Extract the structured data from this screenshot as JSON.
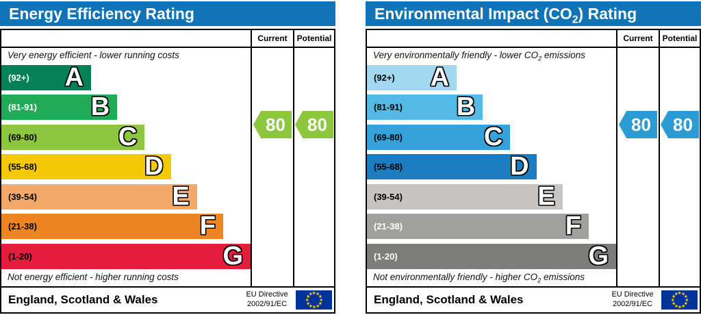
{
  "chart_data": [
    {
      "type": "bar",
      "title": "Energy Efficiency Rating",
      "bands": [
        {
          "band": "A",
          "range": "92+"
        },
        {
          "band": "B",
          "range": "81-91"
        },
        {
          "band": "C",
          "range": "69-80"
        },
        {
          "band": "D",
          "range": "55-68"
        },
        {
          "band": "E",
          "range": "39-54"
        },
        {
          "band": "F",
          "range": "21-38"
        },
        {
          "band": "G",
          "range": "1-20"
        }
      ],
      "current": 80,
      "potential": 80,
      "current_band": "C",
      "potential_band": "C",
      "top_caption": "Very energy efficient - lower running costs",
      "bottom_caption": "Not energy efficient - higher running costs",
      "region": "England, Scotland & Wales",
      "directive": "EU Directive 2002/91/EC"
    },
    {
      "type": "bar",
      "title": "Environmental Impact (CO2) Rating",
      "bands": [
        {
          "band": "A",
          "range": "92+"
        },
        {
          "band": "B",
          "range": "81-91"
        },
        {
          "band": "C",
          "range": "69-80"
        },
        {
          "band": "D",
          "range": "55-68"
        },
        {
          "band": "E",
          "range": "39-54"
        },
        {
          "band": "F",
          "range": "21-38"
        },
        {
          "band": "G",
          "range": "1-20"
        }
      ],
      "current": 80,
      "potential": 80,
      "current_band": "C",
      "potential_band": "C",
      "top_caption": "Very environmentally friendly - lower CO2 emissions",
      "bottom_caption": "Not environmentally friendly - higher CO2 emissions",
      "region": "England, Scotland & Wales",
      "directive": "EU Directive 2002/91/EC"
    }
  ],
  "panels": [
    {
      "id": "energy",
      "header_color": "#1173b8",
      "title": {
        "pre": "Energy Efficiency Rating",
        "sub": "",
        "post": ""
      },
      "columns": {
        "current": "Current",
        "potential": "Potential"
      },
      "caption_top": {
        "pre": "Very energy efficient - lower running costs",
        "sub": "",
        "post": ""
      },
      "caption_bottom": {
        "pre": "Not energy efficient - higher running costs",
        "sub": "",
        "post": ""
      },
      "bands": [
        {
          "letter": "A",
          "range": "(92+)",
          "color": "#058157",
          "label_color": "#ffffff",
          "width_pct": 36
        },
        {
          "letter": "B",
          "range": "(81-91)",
          "color": "#22ab57",
          "label_color": "#ffffff",
          "width_pct": 46.5
        },
        {
          "letter": "C",
          "range": "(69-80)",
          "color": "#8dc63f",
          "label_color": "#000000",
          "width_pct": 57.5
        },
        {
          "letter": "D",
          "range": "(55-68)",
          "color": "#f4c908",
          "label_color": "#000000",
          "width_pct": 68
        },
        {
          "letter": "E",
          "range": "(39-54)",
          "color": "#f3a96a",
          "label_color": "#000000",
          "width_pct": 78.5
        },
        {
          "letter": "F",
          "range": "(21-38)",
          "color": "#ee8523",
          "label_color": "#000000",
          "width_pct": 89
        },
        {
          "letter": "G",
          "range": "(1-20)",
          "color": "#e51d3c",
          "label_color": "#000000",
          "width_pct": 100
        }
      ],
      "current": {
        "value": "80",
        "color": "#8dc63f"
      },
      "potential": {
        "value": "80",
        "color": "#8dc63f"
      },
      "footer": {
        "region": "England, Scotland & Wales",
        "directive_line1": "EU Directive",
        "directive_line2": "2002/91/EC"
      }
    },
    {
      "id": "co2",
      "header_color": "#1173b8",
      "title": {
        "pre": "Environmental Impact (CO",
        "sub": "2",
        "post": ") Rating"
      },
      "columns": {
        "current": "Current",
        "potential": "Potential"
      },
      "caption_top": {
        "pre": "Very environmentally friendly - lower CO",
        "sub": "2",
        "post": " emissions"
      },
      "caption_bottom": {
        "pre": "Not environmentally friendly - higher CO",
        "sub": "2",
        "post": " emissions"
      },
      "bands": [
        {
          "letter": "A",
          "range": "(92+)",
          "color": "#a2d9f1",
          "label_color": "#000000",
          "width_pct": 36
        },
        {
          "letter": "B",
          "range": "(81-91)",
          "color": "#55b9e6",
          "label_color": "#000000",
          "width_pct": 46.5
        },
        {
          "letter": "C",
          "range": "(69-80)",
          "color": "#35a3da",
          "label_color": "#000000",
          "width_pct": 57.5
        },
        {
          "letter": "D",
          "range": "(55-68)",
          "color": "#1b7cc0",
          "label_color": "#000000",
          "width_pct": 68
        },
        {
          "letter": "E",
          "range": "(39-54)",
          "color": "#c6c5c3",
          "label_color": "#000000",
          "width_pct": 78.5
        },
        {
          "letter": "F",
          "range": "(21-38)",
          "color": "#a0a09e",
          "label_color": "#ffffff",
          "width_pct": 89
        },
        {
          "letter": "G",
          "range": "(1-20)",
          "color": "#7c7c7a",
          "label_color": "#ffffff",
          "width_pct": 100
        }
      ],
      "current": {
        "value": "80",
        "color": "#2d9bd3"
      },
      "potential": {
        "value": "80",
        "color": "#2d9bd3"
      },
      "footer": {
        "region": "England, Scotland & Wales",
        "directive_line1": "EU Directive",
        "directive_line2": "2002/91/EC"
      }
    }
  ],
  "eu_flag": {
    "bg": "#003399",
    "star_color": "#ffcc00",
    "star": "★"
  }
}
